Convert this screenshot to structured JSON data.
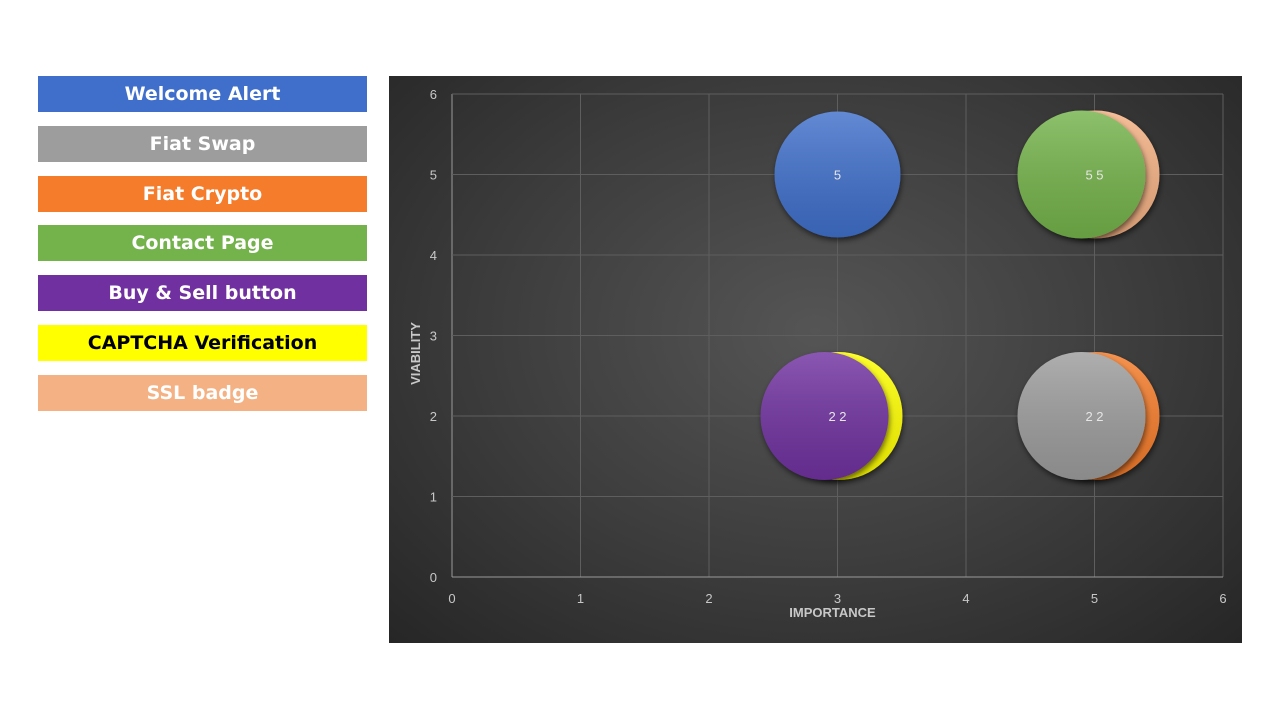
{
  "legend": [
    {
      "label": "Welcome Alert",
      "color": "#3f6fcb",
      "text_color": "#ffffff"
    },
    {
      "label": "Fiat Swap",
      "color": "#9d9d9d",
      "text_color": "#ffffff"
    },
    {
      "label": "Fiat Crypto",
      "color": "#f57c2a",
      "text_color": "#ffffff"
    },
    {
      "label": "Contact Page",
      "color": "#74b34c",
      "text_color": "#ffffff"
    },
    {
      "label": "Buy & Sell button",
      "color": "#7030a0",
      "text_color": "#ffffff"
    },
    {
      "label": "CAPTCHA Verification",
      "color": "#ffff00",
      "text_color": "#000000"
    },
    {
      "label": "SSL badge",
      "color": "#f4b183",
      "text_color": "#ffffff"
    }
  ],
  "chart_data": {
    "type": "scatter",
    "xlabel": "IMPORTANCE",
    "ylabel": "VIABILITY",
    "xlim": [
      0,
      6
    ],
    "ylim": [
      0,
      6
    ],
    "xticks": [
      "0",
      "1",
      "2",
      "3",
      "4",
      "5",
      "6"
    ],
    "yticks": [
      "0",
      "1",
      "2",
      "3",
      "4",
      "5",
      "6"
    ],
    "grid": true,
    "series": [
      {
        "name": "SSL badge",
        "x": 5,
        "y": 5,
        "color": "#f4b183"
      },
      {
        "name": "Contact Page",
        "x": 5,
        "y": 5,
        "color": "#74b34c"
      },
      {
        "name": "Welcome Alert",
        "x": 3,
        "y": 5,
        "color": "#3f6fcb"
      },
      {
        "name": "CAPTCHA Verification",
        "x": 3,
        "y": 2,
        "color": "#ffff00"
      },
      {
        "name": "Buy & Sell button",
        "x": 3,
        "y": 2,
        "color": "#7030a0"
      },
      {
        "name": "Fiat Crypto",
        "x": 5,
        "y": 2,
        "color": "#f57c2a"
      },
      {
        "name": "Fiat Swap",
        "x": 5,
        "y": 2,
        "color": "#9d9d9d"
      }
    ],
    "data_labels": [
      {
        "text": "5",
        "x": 3,
        "y": 5
      },
      {
        "text": "5 5",
        "x": 5,
        "y": 5
      },
      {
        "text": "2 2",
        "x": 3,
        "y": 2
      },
      {
        "text": "2 2",
        "x": 5,
        "y": 2
      }
    ]
  }
}
